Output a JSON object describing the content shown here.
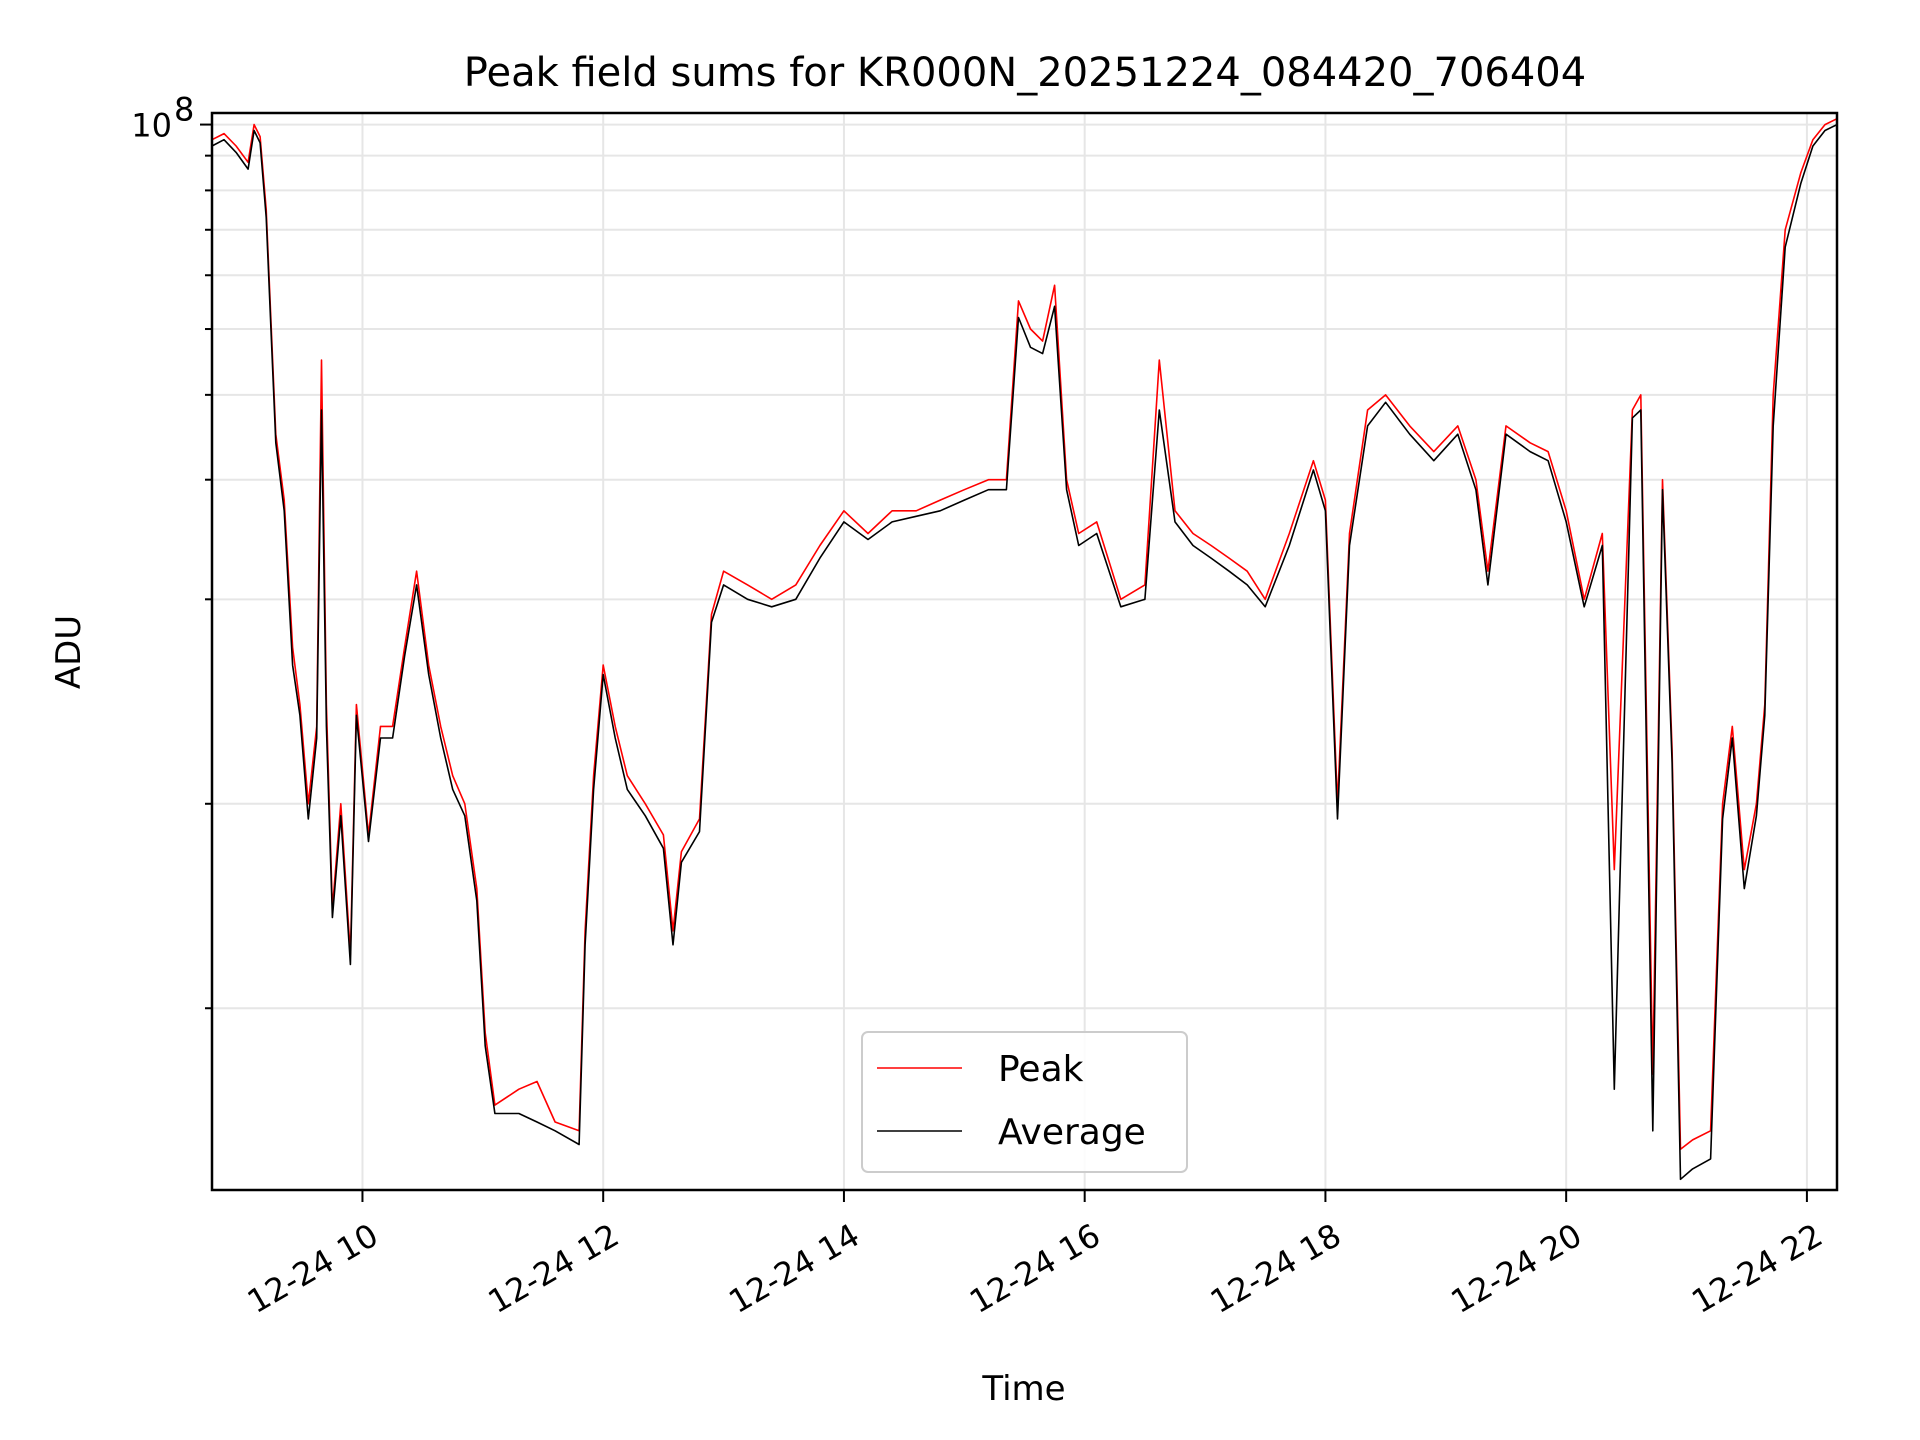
{
  "chart_data": {
    "type": "line",
    "title": "Peak field sums for KR000N_20251224_084420_706404",
    "xlabel": "Time",
    "ylabel": "ADU",
    "yscale": "log",
    "grid": true,
    "legend_position": "bottom-center",
    "ylim": [
      2700000,
      104000000
    ],
    "xlim": [
      8.75,
      22.25
    ],
    "y_tick_labels": [
      {
        "value": 100000000,
        "label": "10",
        "exponent": "8"
      }
    ],
    "y_minor_ticks": [
      5000000,
      10000000,
      20000000,
      30000000,
      40000000,
      50000000,
      60000000,
      70000000,
      80000000,
      90000000
    ],
    "x_ticks": [
      {
        "value": 10,
        "label": "12-24 10"
      },
      {
        "value": 12,
        "label": "12-24 12"
      },
      {
        "value": 14,
        "label": "12-24 14"
      },
      {
        "value": 16,
        "label": "12-24 16"
      },
      {
        "value": 18,
        "label": "12-24 18"
      },
      {
        "value": 20,
        "label": "12-24 20"
      },
      {
        "value": 22,
        "label": "12-24 22"
      }
    ],
    "x_units": "hour of 2025-12-24",
    "series": [
      {
        "name": "Peak",
        "color": "#ff0000",
        "points": [
          [
            8.75,
            95000000
          ],
          [
            8.85,
            97000000
          ],
          [
            8.95,
            93000000
          ],
          [
            9.05,
            88000000
          ],
          [
            9.1,
            100000000
          ],
          [
            9.15,
            96000000
          ],
          [
            9.2,
            75000000
          ],
          [
            9.28,
            35000000
          ],
          [
            9.35,
            28000000
          ],
          [
            9.42,
            17000000
          ],
          [
            9.48,
            14000000
          ],
          [
            9.55,
            10000000
          ],
          [
            9.62,
            13000000
          ],
          [
            9.66,
            45000000
          ],
          [
            9.7,
            14000000
          ],
          [
            9.75,
            7000000
          ],
          [
            9.82,
            10000000
          ],
          [
            9.9,
            6000000
          ],
          [
            9.95,
            14000000
          ],
          [
            10.05,
            9000000
          ],
          [
            10.15,
            13000000
          ],
          [
            10.25,
            13000000
          ],
          [
            10.35,
            17000000
          ],
          [
            10.45,
            22000000
          ],
          [
            10.55,
            16000000
          ],
          [
            10.65,
            13000000
          ],
          [
            10.75,
            11000000
          ],
          [
            10.85,
            10000000
          ],
          [
            10.95,
            7500000
          ],
          [
            11.02,
            4600000
          ],
          [
            11.1,
            3600000
          ],
          [
            11.3,
            3800000
          ],
          [
            11.45,
            3900000
          ],
          [
            11.6,
            3400000
          ],
          [
            11.8,
            3300000
          ],
          [
            11.85,
            6500000
          ],
          [
            11.92,
            11000000
          ],
          [
            12.0,
            16000000
          ],
          [
            12.1,
            13000000
          ],
          [
            12.2,
            11000000
          ],
          [
            12.35,
            10000000
          ],
          [
            12.5,
            9000000
          ],
          [
            12.58,
            6500000
          ],
          [
            12.65,
            8500000
          ],
          [
            12.8,
            9500000
          ],
          [
            12.9,
            19000000
          ],
          [
            13.0,
            22000000
          ],
          [
            13.2,
            21000000
          ],
          [
            13.4,
            20000000
          ],
          [
            13.6,
            21000000
          ],
          [
            13.8,
            24000000
          ],
          [
            14.0,
            27000000
          ],
          [
            14.2,
            25000000
          ],
          [
            14.4,
            27000000
          ],
          [
            14.6,
            27000000
          ],
          [
            14.8,
            28000000
          ],
          [
            15.0,
            29000000
          ],
          [
            15.2,
            30000000
          ],
          [
            15.35,
            30000000
          ],
          [
            15.45,
            55000000
          ],
          [
            15.55,
            50000000
          ],
          [
            15.65,
            48000000
          ],
          [
            15.75,
            58000000
          ],
          [
            15.85,
            30000000
          ],
          [
            15.95,
            25000000
          ],
          [
            16.1,
            26000000
          ],
          [
            16.3,
            20000000
          ],
          [
            16.5,
            21000000
          ],
          [
            16.62,
            45000000
          ],
          [
            16.75,
            27000000
          ],
          [
            16.9,
            25000000
          ],
          [
            17.05,
            24000000
          ],
          [
            17.2,
            23000000
          ],
          [
            17.35,
            22000000
          ],
          [
            17.5,
            20000000
          ],
          [
            17.7,
            25000000
          ],
          [
            17.9,
            32000000
          ],
          [
            18.0,
            28000000
          ],
          [
            18.1,
            10000000
          ],
          [
            18.2,
            25000000
          ],
          [
            18.35,
            38000000
          ],
          [
            18.5,
            40000000
          ],
          [
            18.7,
            36000000
          ],
          [
            18.9,
            33000000
          ],
          [
            19.1,
            36000000
          ],
          [
            19.25,
            30000000
          ],
          [
            19.35,
            22000000
          ],
          [
            19.5,
            36000000
          ],
          [
            19.7,
            34000000
          ],
          [
            19.85,
            33000000
          ],
          [
            20.0,
            27000000
          ],
          [
            20.15,
            20000000
          ],
          [
            20.3,
            25000000
          ],
          [
            20.4,
            8000000
          ],
          [
            20.55,
            38000000
          ],
          [
            20.62,
            40000000
          ],
          [
            20.72,
            4000000
          ],
          [
            20.8,
            30000000
          ],
          [
            20.88,
            12000000
          ],
          [
            20.95,
            3100000
          ],
          [
            21.05,
            3200000
          ],
          [
            21.2,
            3300000
          ],
          [
            21.3,
            10000000
          ],
          [
            21.38,
            13000000
          ],
          [
            21.48,
            8000000
          ],
          [
            21.58,
            10000000
          ],
          [
            21.65,
            14000000
          ],
          [
            21.72,
            40000000
          ],
          [
            21.82,
            70000000
          ],
          [
            21.95,
            85000000
          ],
          [
            22.05,
            95000000
          ],
          [
            22.15,
            100000000
          ],
          [
            22.25,
            102000000
          ]
        ]
      },
      {
        "name": "Average",
        "color": "#000000",
        "points": [
          [
            8.75,
            93000000
          ],
          [
            8.85,
            95000000
          ],
          [
            8.95,
            91000000
          ],
          [
            9.05,
            86000000
          ],
          [
            9.1,
            98000000
          ],
          [
            9.15,
            94000000
          ],
          [
            9.2,
            73000000
          ],
          [
            9.28,
            34000000
          ],
          [
            9.35,
            27000000
          ],
          [
            9.42,
            16000000
          ],
          [
            9.48,
            13500000
          ],
          [
            9.55,
            9500000
          ],
          [
            9.62,
            12500000
          ],
          [
            9.66,
            38000000
          ],
          [
            9.7,
            13000000
          ],
          [
            9.75,
            6800000
          ],
          [
            9.82,
            9600000
          ],
          [
            9.9,
            5800000
          ],
          [
            9.95,
            13500000
          ],
          [
            10.05,
            8800000
          ],
          [
            10.15,
            12500000
          ],
          [
            10.25,
            12500000
          ],
          [
            10.35,
            16500000
          ],
          [
            10.45,
            21000000
          ],
          [
            10.55,
            15500000
          ],
          [
            10.65,
            12500000
          ],
          [
            10.75,
            10500000
          ],
          [
            10.85,
            9600000
          ],
          [
            10.95,
            7200000
          ],
          [
            11.02,
            4400000
          ],
          [
            11.1,
            3500000
          ],
          [
            11.3,
            3500000
          ],
          [
            11.45,
            3400000
          ],
          [
            11.6,
            3300000
          ],
          [
            11.8,
            3150000
          ],
          [
            11.85,
            6200000
          ],
          [
            11.92,
            10500000
          ],
          [
            12.0,
            15500000
          ],
          [
            12.1,
            12500000
          ],
          [
            12.2,
            10500000
          ],
          [
            12.35,
            9600000
          ],
          [
            12.5,
            8600000
          ],
          [
            12.58,
            6200000
          ],
          [
            12.65,
            8200000
          ],
          [
            12.8,
            9100000
          ],
          [
            12.9,
            18500000
          ],
          [
            13.0,
            21000000
          ],
          [
            13.2,
            20000000
          ],
          [
            13.4,
            19500000
          ],
          [
            13.6,
            20000000
          ],
          [
            13.8,
            23000000
          ],
          [
            14.0,
            26000000
          ],
          [
            14.2,
            24500000
          ],
          [
            14.4,
            26000000
          ],
          [
            14.6,
            26500000
          ],
          [
            14.8,
            27000000
          ],
          [
            15.0,
            28000000
          ],
          [
            15.2,
            29000000
          ],
          [
            15.35,
            29000000
          ],
          [
            15.45,
            52000000
          ],
          [
            15.55,
            47000000
          ],
          [
            15.65,
            46000000
          ],
          [
            15.75,
            54000000
          ],
          [
            15.85,
            29000000
          ],
          [
            15.95,
            24000000
          ],
          [
            16.1,
            25000000
          ],
          [
            16.3,
            19500000
          ],
          [
            16.5,
            20000000
          ],
          [
            16.62,
            38000000
          ],
          [
            16.75,
            26000000
          ],
          [
            16.9,
            24000000
          ],
          [
            17.05,
            23000000
          ],
          [
            17.2,
            22000000
          ],
          [
            17.35,
            21000000
          ],
          [
            17.5,
            19500000
          ],
          [
            17.7,
            24000000
          ],
          [
            17.9,
            31000000
          ],
          [
            18.0,
            27000000
          ],
          [
            18.1,
            9500000
          ],
          [
            18.2,
            24000000
          ],
          [
            18.35,
            36000000
          ],
          [
            18.5,
            39000000
          ],
          [
            18.7,
            35000000
          ],
          [
            18.9,
            32000000
          ],
          [
            19.1,
            35000000
          ],
          [
            19.25,
            29000000
          ],
          [
            19.35,
            21000000
          ],
          [
            19.5,
            35000000
          ],
          [
            19.7,
            33000000
          ],
          [
            19.85,
            32000000
          ],
          [
            20.0,
            26000000
          ],
          [
            20.15,
            19500000
          ],
          [
            20.3,
            24000000
          ],
          [
            20.4,
            3800000
          ],
          [
            20.55,
            37000000
          ],
          [
            20.62,
            38000000
          ],
          [
            20.72,
            3300000
          ],
          [
            20.8,
            29000000
          ],
          [
            20.88,
            11500000
          ],
          [
            20.95,
            2800000
          ],
          [
            21.05,
            2900000
          ],
          [
            21.2,
            3000000
          ],
          [
            21.3,
            9500000
          ],
          [
            21.38,
            12500000
          ],
          [
            21.48,
            7500000
          ],
          [
            21.58,
            9600000
          ],
          [
            21.65,
            13500000
          ],
          [
            21.72,
            36000000
          ],
          [
            21.82,
            66000000
          ],
          [
            21.95,
            82000000
          ],
          [
            22.05,
            93000000
          ],
          [
            22.15,
            98000000
          ],
          [
            22.25,
            100000000
          ]
        ]
      }
    ]
  }
}
